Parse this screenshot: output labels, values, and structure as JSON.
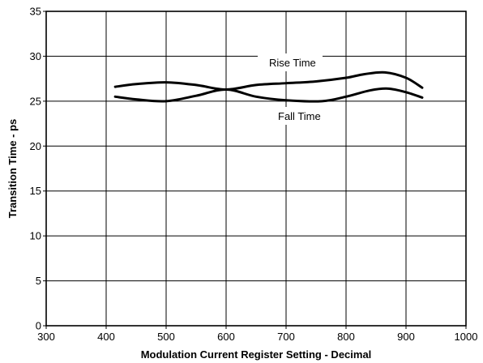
{
  "chart_data": {
    "type": "line",
    "xlabel": "Modulation Current Register Setting - Decimal",
    "ylabel": "Transition Time - ps",
    "xlim": [
      300,
      1000
    ],
    "ylim": [
      0,
      35
    ],
    "xticks": [
      300,
      400,
      500,
      600,
      700,
      800,
      900,
      1000
    ],
    "yticks": [
      0,
      5,
      10,
      15,
      20,
      25,
      30,
      35
    ],
    "grid": true,
    "series": [
      {
        "name": "Rise Time",
        "x": [
          415,
          450,
          500,
          550,
          600,
          650,
          700,
          750,
          800,
          830,
          865,
          900,
          927
        ],
        "y": [
          26.6,
          26.9,
          27.1,
          26.8,
          26.3,
          26.8,
          27.0,
          27.2,
          27.6,
          28.0,
          28.2,
          27.6,
          26.5
        ]
      },
      {
        "name": "Fall Time",
        "x": [
          415,
          450,
          500,
          550,
          600,
          650,
          700,
          760,
          800,
          840,
          870,
          900,
          927
        ],
        "y": [
          25.5,
          25.2,
          25.0,
          25.6,
          26.3,
          25.5,
          25.1,
          25.0,
          25.5,
          26.2,
          26.4,
          26.0,
          25.4
        ]
      }
    ],
    "annotations": [
      "Rise Time",
      "Fall Time"
    ]
  }
}
